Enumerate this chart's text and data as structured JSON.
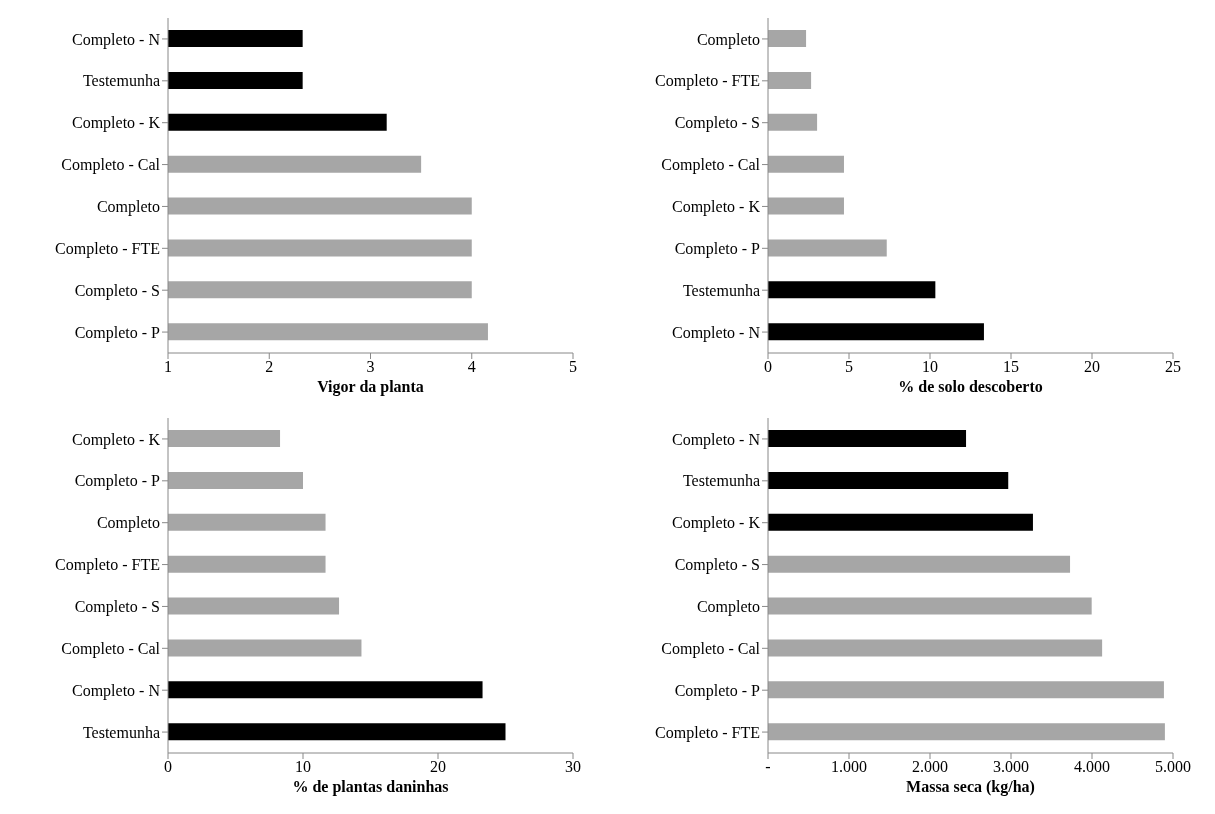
{
  "chart_data": [
    {
      "type": "bar",
      "orientation": "horizontal",
      "xlabel": "Vigor da planta",
      "categories": [
        "Completo - N",
        "Testemunha",
        "Completo - K",
        "Completo - Cal",
        "Completo",
        "Completo - FTE",
        "Completo - S",
        "Completo - P"
      ],
      "values": [
        2.33,
        2.33,
        3.16,
        3.5,
        4.0,
        4.0,
        4.0,
        4.16
      ],
      "colors": [
        "#000000",
        "#000000",
        "#000000",
        "#a6a6a6",
        "#a6a6a6",
        "#a6a6a6",
        "#a6a6a6",
        "#a6a6a6"
      ],
      "xlim": [
        1,
        5
      ],
      "xticks": [
        1,
        2,
        3,
        4,
        5
      ]
    },
    {
      "type": "bar",
      "orientation": "horizontal",
      "xlabel": "% de solo descoberto",
      "categories": [
        "Completo",
        "Completo - FTE",
        "Completo - S",
        "Completo - Cal",
        "Completo - K",
        "Completo - P",
        "Testemunha",
        "Completo - N"
      ],
      "values": [
        2.35,
        2.66,
        3.03,
        4.69,
        4.69,
        7.33,
        10.33,
        13.33
      ],
      "colors": [
        "#a6a6a6",
        "#a6a6a6",
        "#a6a6a6",
        "#a6a6a6",
        "#a6a6a6",
        "#a6a6a6",
        "#000000",
        "#000000"
      ],
      "xlim": [
        0,
        25
      ],
      "xticks": [
        0,
        5,
        10,
        15,
        20,
        25
      ]
    },
    {
      "type": "bar",
      "orientation": "horizontal",
      "xlabel": "% de plantas daninhas",
      "categories": [
        "Completo - K",
        "Completo - P",
        "Completo",
        "Completo - FTE",
        "Completo - S",
        "Completo - Cal",
        "Completo - N",
        "Testemunha"
      ],
      "values": [
        8.3,
        10.0,
        11.67,
        11.67,
        12.67,
        14.33,
        23.3,
        25.0
      ],
      "colors": [
        "#a6a6a6",
        "#a6a6a6",
        "#a6a6a6",
        "#a6a6a6",
        "#a6a6a6",
        "#a6a6a6",
        "#000000",
        "#000000"
      ],
      "xlim": [
        0,
        30
      ],
      "xticks": [
        0,
        10,
        20,
        30
      ]
    },
    {
      "type": "bar",
      "orientation": "horizontal",
      "xlabel": "Massa seca (kg/ha)",
      "categories": [
        "Completo - N",
        "Testemunha",
        "Completo - K",
        "Completo - S",
        "Completo",
        "Completo - Cal",
        "Completo - P",
        "Completo - FTE"
      ],
      "values": [
        2445,
        2966,
        3271,
        3729,
        3996,
        4125,
        4888,
        4900
      ],
      "colors": [
        "#000000",
        "#000000",
        "#000000",
        "#a6a6a6",
        "#a6a6a6",
        "#a6a6a6",
        "#a6a6a6",
        "#a6a6a6"
      ],
      "xlim": [
        0,
        5000
      ],
      "xticks": [
        {
          "value": 0,
          "label": "-"
        },
        {
          "value": 1000,
          "label": "1.000"
        },
        {
          "value": 2000,
          "label": "2.000"
        },
        {
          "value": 3000,
          "label": "3.000"
        },
        {
          "value": 4000,
          "label": "4.000"
        },
        {
          "value": 5000,
          "label": "5.000"
        }
      ]
    }
  ]
}
